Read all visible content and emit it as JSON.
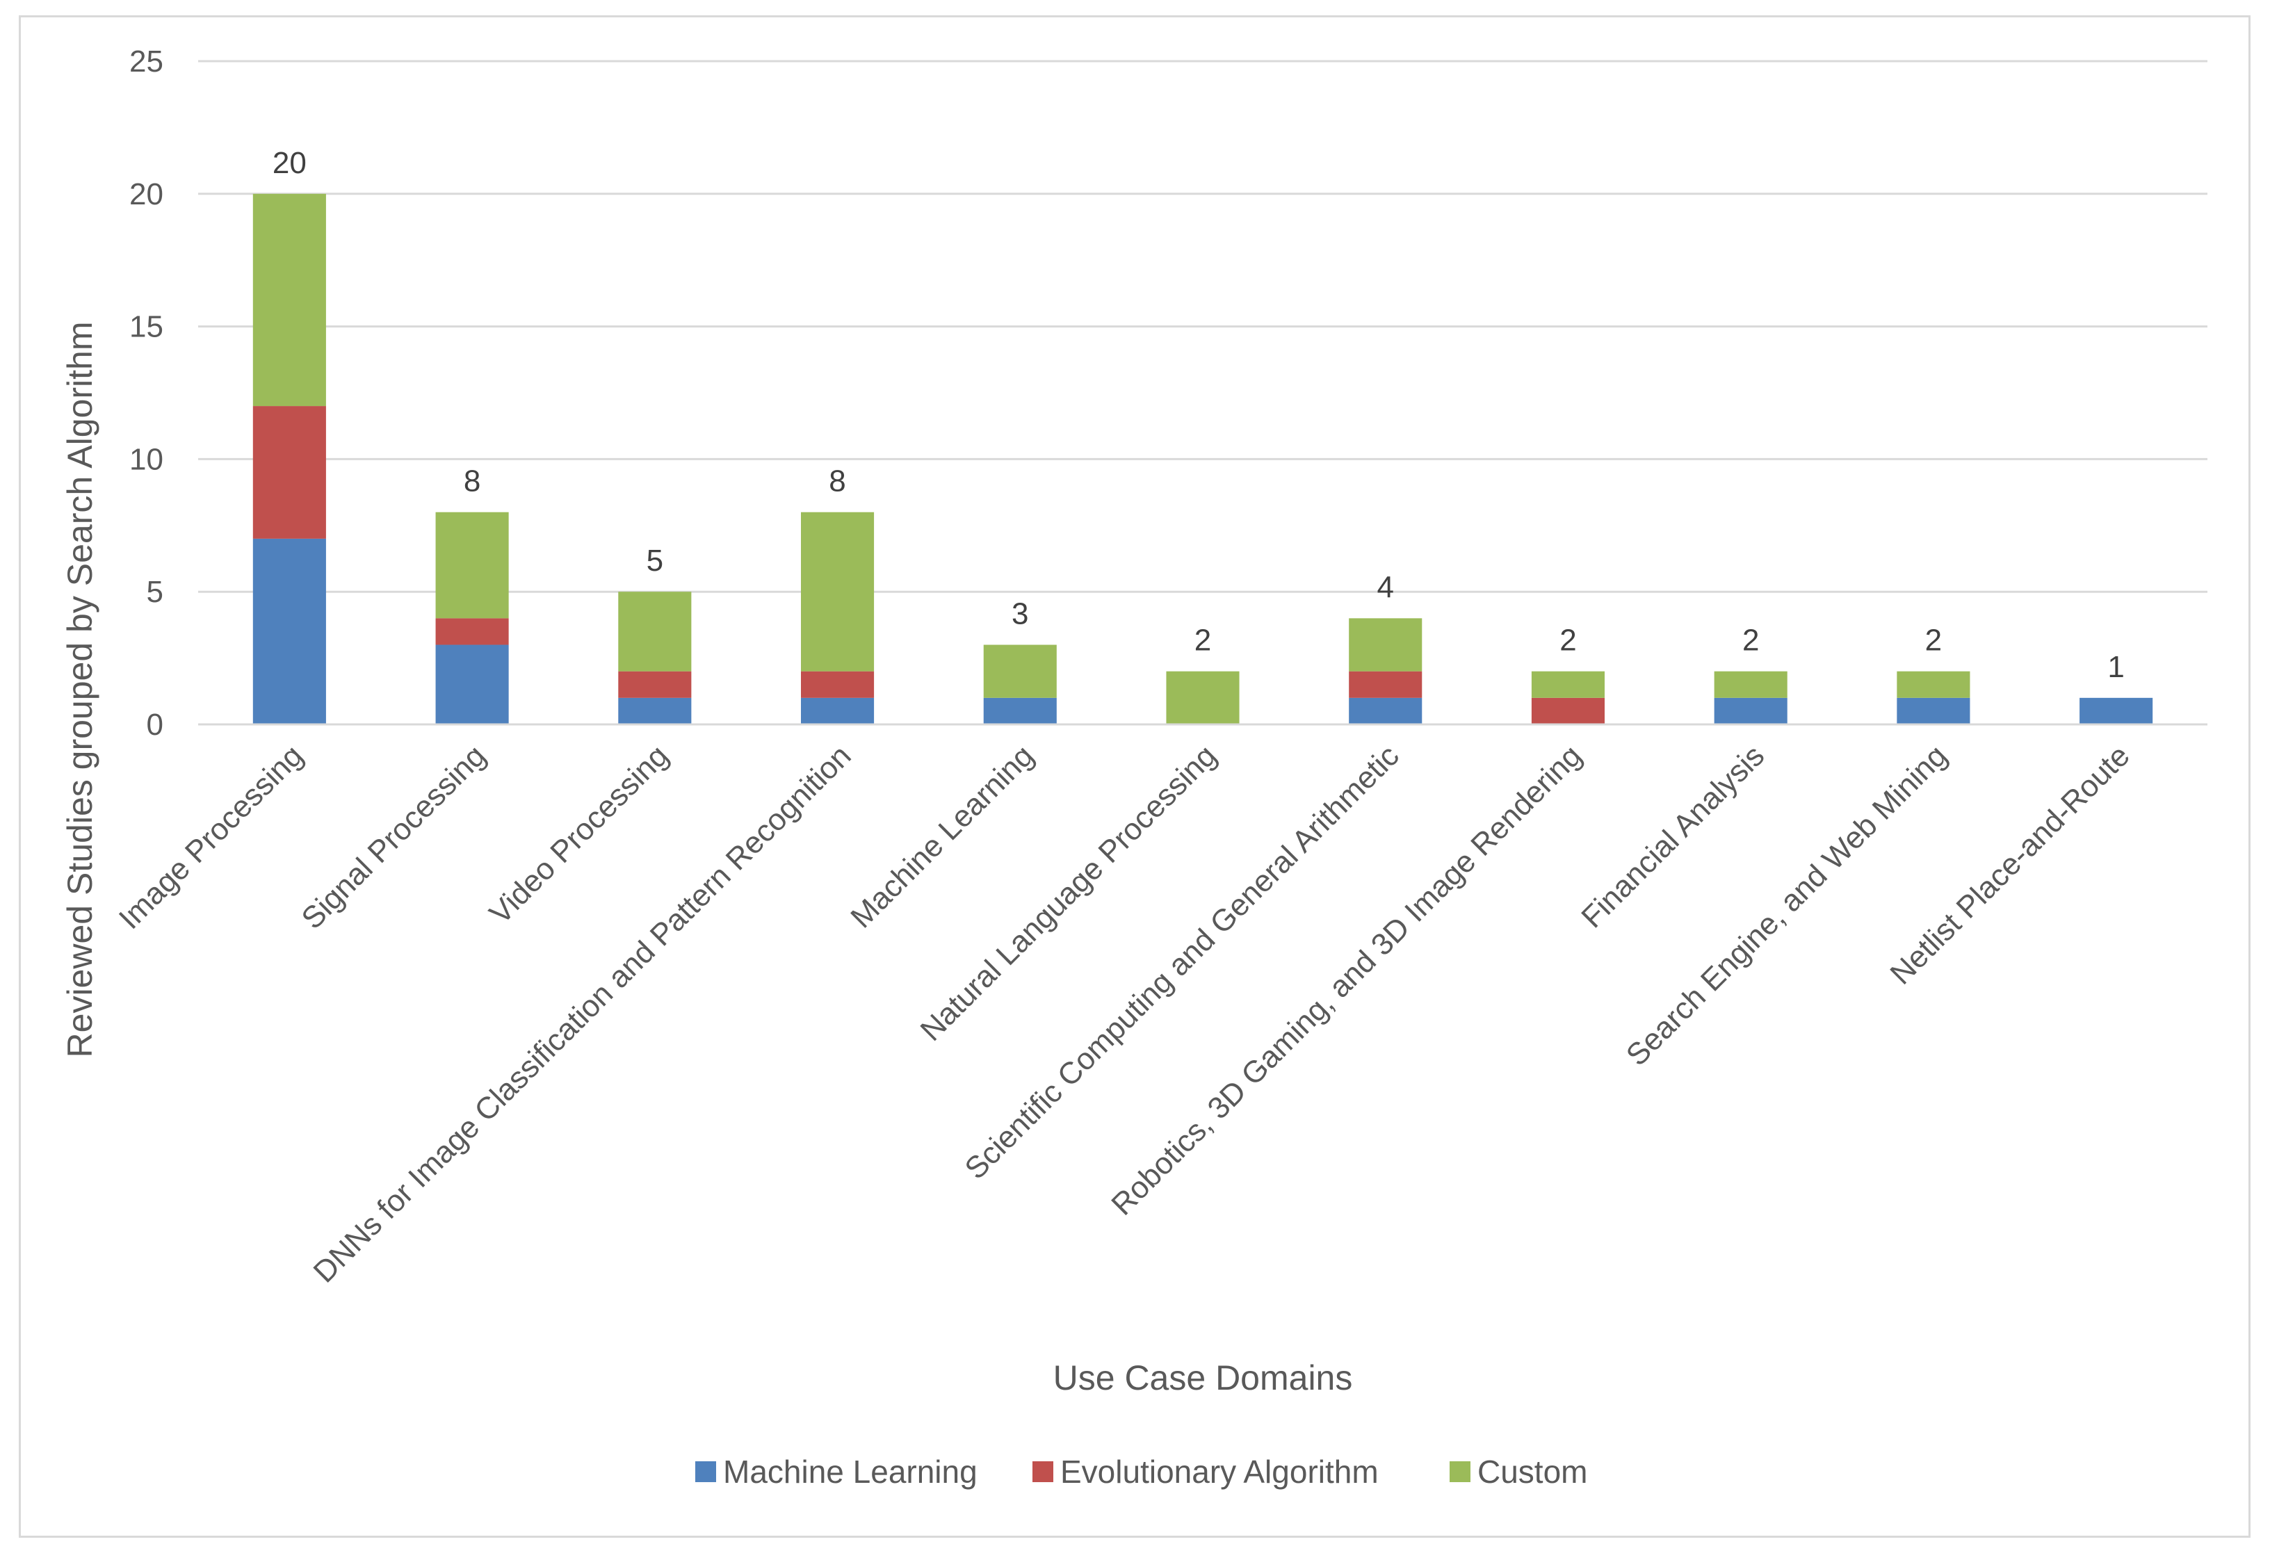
{
  "chart_data": {
    "type": "bar",
    "stacked": true,
    "title": "",
    "xlabel": "Use Case Domains",
    "ylabel": "Reviewed Studies grouped by Search Algorithm",
    "ylim": [
      0,
      25
    ],
    "yticks": [
      0,
      5,
      10,
      15,
      20,
      25
    ],
    "grid": true,
    "legend_position": "bottom",
    "categories": [
      "Image Processing",
      "Signal Processing",
      "Video Processing",
      "DNNs for Image Classification and Pattern Recognition",
      "Machine Learning",
      "Natural Language Processing",
      "Scientific Computing and General Arithmetic",
      "Robotics, 3D Gaming, and 3D Image Rendering",
      "Financial Analysis",
      "Search Engine, and Web Mining",
      "Netlist Place-and-Route"
    ],
    "series": [
      {
        "name": "Machine Learning",
        "color": "#4f81bd",
        "values": [
          7,
          3,
          1,
          1,
          1,
          0,
          1,
          0,
          1,
          1,
          1
        ]
      },
      {
        "name": "Evolutionary Algorithm",
        "color": "#c0504d",
        "values": [
          5,
          1,
          1,
          1,
          0,
          0,
          1,
          1,
          0,
          0,
          0
        ]
      },
      {
        "name": "Custom",
        "color": "#9bbb59",
        "values": [
          8,
          4,
          3,
          6,
          2,
          2,
          2,
          1,
          1,
          1,
          0
        ]
      }
    ],
    "totals": [
      20,
      8,
      5,
      8,
      3,
      2,
      4,
      2,
      2,
      2,
      1
    ]
  }
}
